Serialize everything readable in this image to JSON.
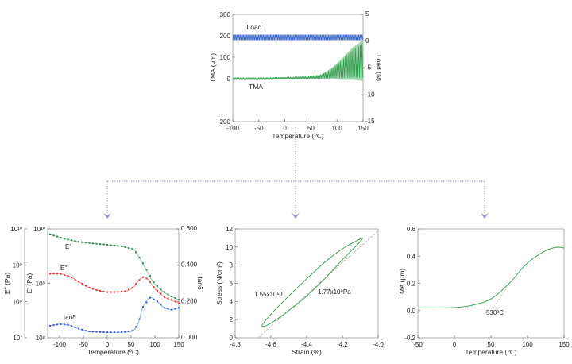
{
  "colors": {
    "load": "#2f5fc4",
    "tma": "#2f9a4a",
    "tma_band": "#8fd0a0",
    "eprime": "#2e8b4f",
    "edouble": "#e8322e",
    "tand": "#2f5fc4",
    "connector": "#9a8fc8",
    "axis": "#999999",
    "reference": "#aaaaaa"
  },
  "chart_data": [
    {
      "type": "line",
      "xlabel": "Temperature (℃)",
      "ylabel": "TMA (μm)",
      "y2label": "Load (N)",
      "xlim": [
        -100,
        150
      ],
      "ylim": [
        -200,
        300
      ],
      "y2lim": [
        -15,
        5
      ],
      "xticks": [
        "-100",
        "-50",
        "0",
        "50",
        "100",
        "150"
      ],
      "yticks": [
        "-200",
        "0",
        "100",
        "200",
        "300"
      ],
      "y2ticks": [
        "-15",
        "-10",
        "-5",
        "0",
        "5"
      ],
      "series": [
        {
          "name": "Load",
          "axis": "right",
          "style": "oscillating-band",
          "x": [
            -100,
            150
          ],
          "center": [
            0.7,
            0.7
          ],
          "half_amplitude": [
            0.55,
            0.55
          ]
        },
        {
          "name": "TMA",
          "axis": "left",
          "style": "oscillating-band",
          "x": [
            -100,
            -50,
            0,
            50,
            70,
            90,
            110,
            130,
            150
          ],
          "center": [
            0,
            0,
            2,
            5,
            10,
            25,
            45,
            70,
            85
          ],
          "half_amplitude": [
            5,
            5,
            5,
            6,
            10,
            25,
            50,
            75,
            95
          ]
        }
      ]
    },
    {
      "type": "line",
      "xlabel": "Temperature (ºC)",
      "ylabel": "E' (Pa)",
      "ylabel_outer": "E'' (Pa)",
      "y2label": "tanδ",
      "xlim": [
        -125,
        150
      ],
      "ylim": [
        100000000.0,
        10000000000.0
      ],
      "yscale": "log",
      "ylim_outer": [
        10000000.0,
        10000000000.0
      ],
      "y2lim": [
        0,
        0.6
      ],
      "xticks": [
        "-100",
        "-50",
        "0",
        "50",
        "100",
        "150"
      ],
      "yticks": [
        "10⁸",
        "10⁹",
        "10¹⁰"
      ],
      "yticks_outer": [
        "10⁷",
        "10⁸",
        "10⁹",
        "10¹⁰"
      ],
      "y2ticks": [
        "0.000",
        "0.200",
        "0.400",
        "0.600"
      ],
      "series": [
        {
          "name": "E'",
          "axis": "left",
          "style": "line-markers",
          "x": [
            -120,
            -90,
            -60,
            -30,
            0,
            30,
            55,
            65,
            80,
            95,
            110,
            130,
            150
          ],
          "y": [
            7900000000.0,
            6600000000.0,
            5800000000.0,
            5400000000.0,
            5100000000.0,
            4800000000.0,
            4200000000.0,
            3200000000.0,
            1900000000.0,
            1100000000.0,
            790000000.0,
            600000000.0,
            500000000.0
          ]
        },
        {
          "name": "E''",
          "axis": "left",
          "style": "line-markers",
          "x": [
            -120,
            -100,
            -80,
            -60,
            -40,
            -20,
            0,
            20,
            40,
            55,
            65,
            75,
            85,
            100,
            120,
            150
          ],
          "y": [
            1500000000.0,
            1500000000.0,
            1350000000.0,
            1070000000.0,
            850000000.0,
            740000000.0,
            690000000.0,
            690000000.0,
            720000000.0,
            850000000.0,
            1100000000.0,
            1300000000.0,
            1200000000.0,
            790000000.0,
            560000000.0,
            430000000.0
          ]
        },
        {
          "name": "tanδ",
          "axis": "right",
          "style": "line-markers",
          "x": [
            -120,
            -100,
            -80,
            -60,
            -40,
            -20,
            0,
            20,
            40,
            55,
            65,
            75,
            90,
            105,
            120,
            135,
            150
          ],
          "y": [
            0.066,
            0.075,
            0.07,
            0.05,
            0.035,
            0.032,
            0.03,
            0.03,
            0.032,
            0.04,
            0.08,
            0.17,
            0.22,
            0.2,
            0.165,
            0.155,
            0.165
          ]
        }
      ]
    },
    {
      "type": "line",
      "xlabel": "Strain (%)",
      "ylabel": "Stress (N/cm²)",
      "xlim": [
        -4.8,
        -4.0
      ],
      "ylim": [
        0,
        12
      ],
      "xticks": [
        "-4.8",
        "-4.6",
        "-4.4",
        "-4.2",
        "-4.0"
      ],
      "yticks": [
        "0",
        "2",
        "4",
        "6",
        "8",
        "10",
        "12"
      ],
      "annotations": [
        "1.55x10⁵J",
        "1.77x10⁹Pa"
      ],
      "series": [
        {
          "style": "closed-loop",
          "x": [
            -4.65,
            -4.6,
            -4.5,
            -4.4,
            -4.3,
            -4.2,
            -4.1,
            -4.09,
            -4.1,
            -4.2,
            -4.3,
            -4.4,
            -4.5,
            -4.6
          ],
          "y": [
            1.3,
            2.6,
            4.6,
            6.5,
            8.3,
            9.8,
            10.9,
            11.0,
            10.6,
            8.6,
            6.5,
            4.6,
            3.0,
            1.6
          ]
        },
        {
          "style": "reference-line",
          "x": [
            -4.67,
            -4.0
          ],
          "y": [
            0,
            11.8
          ]
        }
      ]
    },
    {
      "type": "line",
      "xlabel": "Temperature (℃)",
      "ylabel": "TMA (μm)",
      "xlim": [
        -50,
        150
      ],
      "ylim": [
        -0.2,
        0.6
      ],
      "xticks": [
        "-50",
        "0",
        "50",
        "100",
        "150"
      ],
      "yticks": [
        "-0.2",
        "0.0",
        "0.2",
        "0.4",
        "0.6"
      ],
      "annotations": [
        "530ºC"
      ],
      "series": [
        {
          "style": "line",
          "x": [
            -50,
            -25,
            0,
            25,
            50,
            75,
            100,
            125,
            140,
            150
          ],
          "y": [
            0.02,
            0.02,
            0.022,
            0.04,
            0.085,
            0.2,
            0.35,
            0.44,
            0.465,
            0.46
          ]
        },
        {
          "style": "reference-line",
          "x": [
            -25,
            53
          ],
          "y": [
            0.02,
            0.02
          ]
        },
        {
          "style": "reference-line",
          "x": [
            53,
            72
          ],
          "y": [
            0.02,
            0.17
          ]
        }
      ]
    }
  ]
}
